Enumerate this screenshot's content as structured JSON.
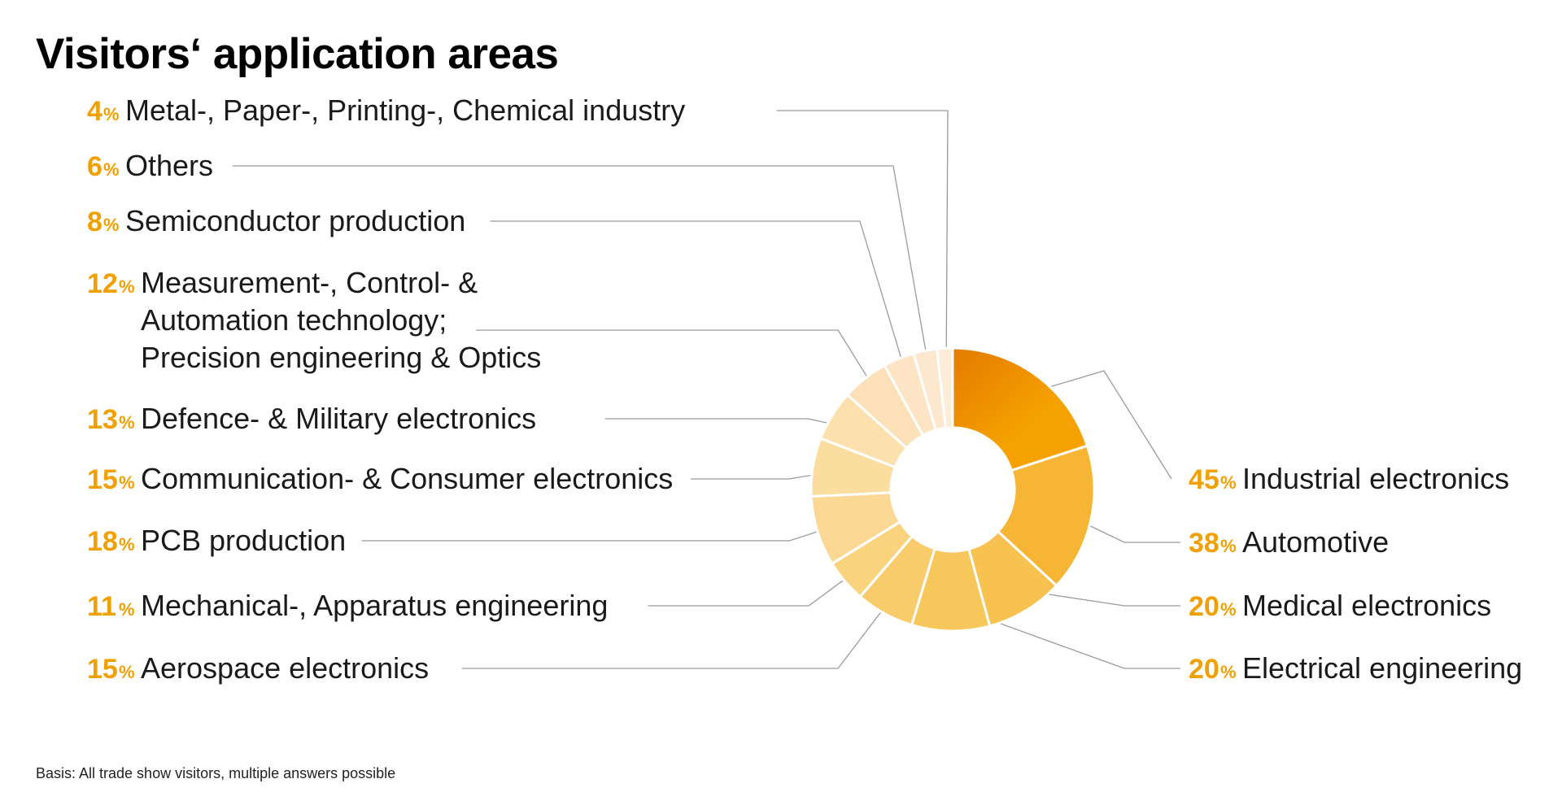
{
  "chart_data": {
    "type": "pie",
    "subtype": "donut",
    "title": "Visitors‘ application areas",
    "unit": "%",
    "note": "Basis: All trade show visitors, multiple answers possible",
    "slices": [
      {
        "label": "Industrial electronics",
        "value": 45,
        "color": "#f29a00",
        "side": "right"
      },
      {
        "label": "Automotive",
        "value": 38,
        "color": "#f6b534",
        "side": "right"
      },
      {
        "label": "Medical electronics",
        "value": 20,
        "color": "#f7c24f",
        "side": "right"
      },
      {
        "label": "Electrical engineering",
        "value": 20,
        "color": "#f8c75c",
        "side": "right"
      },
      {
        "label": "Aerospace electronics",
        "value": 15,
        "color": "#f9cc6b",
        "side": "left"
      },
      {
        "label": "Mechanical-, Apparatus engineering",
        "value": 11,
        "color": "#fad37e",
        "side": "left"
      },
      {
        "label": "PCB production",
        "value": 18,
        "color": "#fbd995",
        "side": "left"
      },
      {
        "label": "Communication- & Consumer electronics",
        "value": 15,
        "color": "#fbdd9f",
        "side": "left"
      },
      {
        "label": "Defence- & Military electronics",
        "value": 13,
        "color": "#fce1ae",
        "side": "left"
      },
      {
        "label": "Measurement-, Control- & Automation technology; Precision engineering & Optics",
        "label_lines": [
          "Measurement-, Control- &",
          "Automation technology;",
          "Precision engineering & Optics"
        ],
        "value": 12,
        "color": "#fce0b8",
        "side": "left"
      },
      {
        "label": "Semiconductor production",
        "value": 8,
        "color": "#fde4c4",
        "side": "left"
      },
      {
        "label": "Others",
        "value": 6,
        "color": "#fde8cf",
        "side": "left"
      },
      {
        "label": "Metal-, Paper-, Printing-, Chemical industry",
        "value": 4,
        "color": "#fdecd8",
        "side": "left"
      }
    ]
  }
}
